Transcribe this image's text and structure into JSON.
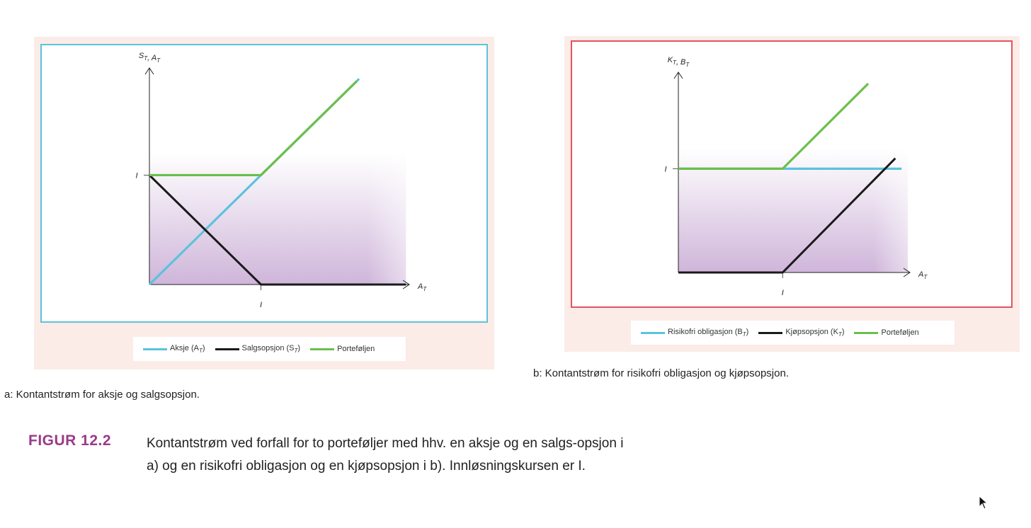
{
  "panel_a": {
    "caption": "a: Kontantstrøm for aksje og salgsopsjon.",
    "legend": [
      {
        "label": "Aksje (A",
        "sub": "T",
        "tail": ")",
        "color": "#5bc3dc"
      },
      {
        "label": "Salgsopsjon (S",
        "sub": "T",
        "tail": ")",
        "color": "#1a1a1a"
      },
      {
        "label": "Porteføljen",
        "sub": "",
        "tail": "",
        "color": "#6abf4b"
      }
    ]
  },
  "panel_b": {
    "caption": "b: Kontantstrøm for risikofri obligasjon og kjøpsopsjon.",
    "legend": [
      {
        "label": "Risikofri obligasjon (B",
        "sub": "T",
        "tail": ")",
        "color": "#5bc3dc"
      },
      {
        "label": "Kjøpsopsjon (K",
        "sub": "T",
        "tail": ")",
        "color": "#1a1a1a"
      },
      {
        "label": "Porteføljen",
        "sub": "",
        "tail": "",
        "color": "#6abf4b"
      }
    ]
  },
  "figure": {
    "label": "FIGUR 12.2",
    "text": "Kontantstrøm ved forfall for to porteføljer med hhv. en aksje og en salgs-opsjon i a) og en risikofri obligasjon og en kjøpsopsjon i b). Innløsningskursen er I."
  },
  "chart_data": [
    {
      "type": "line",
      "xlabel": "A_T",
      "ylabel": "S_T, A_T",
      "x_ticks": [
        "I"
      ],
      "y_ticks": [
        "I"
      ],
      "strike": 1,
      "xlim": [
        0,
        2.33
      ],
      "ylim": [
        0,
        1.98
      ],
      "series": [
        {
          "name": "Aksje (A_T)",
          "color": "#5bc3dc",
          "points": [
            [
              0,
              0
            ],
            [
              1.88,
              1.88
            ]
          ]
        },
        {
          "name": "Salgsopsjon (S_T)",
          "color": "#1a1a1a",
          "points": [
            [
              0,
              1
            ],
            [
              1,
              0
            ],
            [
              2.3,
              0
            ]
          ]
        },
        {
          "name": "Porteføljen",
          "color": "#6abf4b",
          "points": [
            [
              0,
              1
            ],
            [
              1,
              1
            ],
            [
              1.86,
              1.86
            ]
          ]
        }
      ]
    },
    {
      "type": "line",
      "xlabel": "A_T",
      "ylabel": "K_T, B_T",
      "x_ticks": [
        "I"
      ],
      "y_ticks": [
        "I"
      ],
      "strike": 1,
      "xlim": [
        0,
        2.22
      ],
      "ylim": [
        0,
        1.93
      ],
      "series": [
        {
          "name": "Risikofri obligasjon (B_T)",
          "color": "#5bc3dc",
          "points": [
            [
              0,
              1
            ],
            [
              2.14,
              1
            ]
          ]
        },
        {
          "name": "Kjøpsopsjon (K_T)",
          "color": "#1a1a1a",
          "points": [
            [
              0,
              0
            ],
            [
              1,
              0
            ],
            [
              2.08,
              1.1
            ]
          ]
        },
        {
          "name": "Porteføljen",
          "color": "#6abf4b",
          "points": [
            [
              0,
              1
            ],
            [
              1,
              1
            ],
            [
              1.82,
              1.82
            ]
          ]
        }
      ]
    }
  ]
}
